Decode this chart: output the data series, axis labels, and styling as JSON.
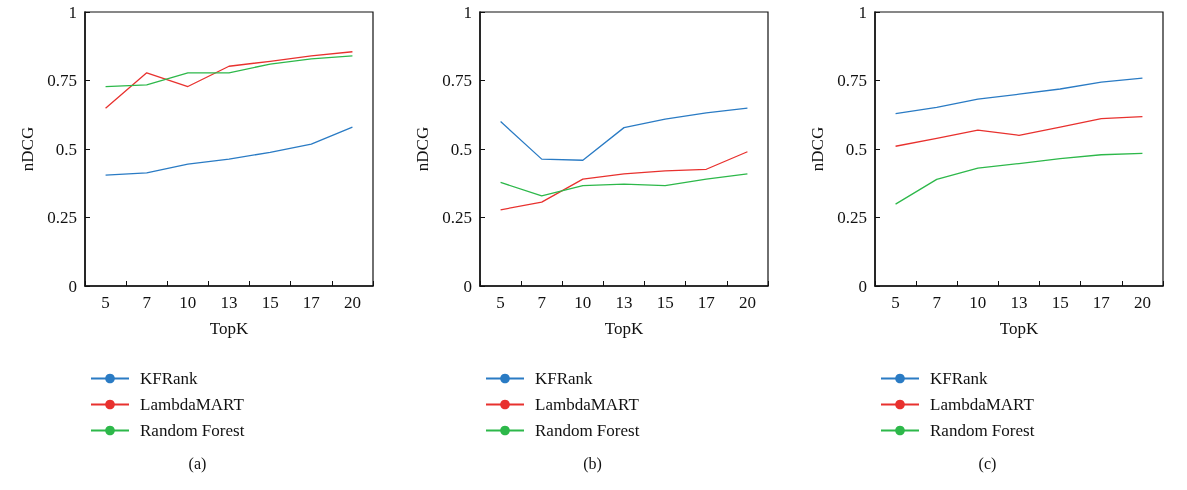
{
  "chart_data": [
    {
      "type": "line",
      "xlabel": "TopK",
      "ylabel": "nDCG",
      "categories": [
        "5",
        "7",
        "10",
        "13",
        "15",
        "17",
        "20"
      ],
      "ylim": [
        0,
        1
      ],
      "yticks": [
        0,
        0.25,
        0.5,
        0.75,
        1
      ],
      "grid": false,
      "legend": "bottom",
      "marker": "none",
      "annotations": [
        "(a)"
      ],
      "series": [
        {
          "name": "KFRank",
          "color": "#2a7bc4",
          "values": [
            0.405,
            0.413,
            0.445,
            0.463,
            0.488,
            0.518,
            0.58
          ]
        },
        {
          "name": "LambdaMART",
          "color": "#e8312e",
          "values": [
            0.649,
            0.778,
            0.728,
            0.802,
            0.82,
            0.84,
            0.855
          ]
        },
        {
          "name": "Random Forest",
          "color": "#2db84a",
          "values": [
            0.728,
            0.734,
            0.778,
            0.778,
            0.81,
            0.829,
            0.84
          ]
        }
      ]
    },
    {
      "type": "line",
      "xlabel": "TopK",
      "ylabel": "nDCG",
      "categories": [
        "5",
        "7",
        "10",
        "13",
        "15",
        "17",
        "20"
      ],
      "ylim": [
        0,
        1
      ],
      "yticks": [
        0,
        0.25,
        0.5,
        0.75,
        1
      ],
      "grid": false,
      "legend": "bottom",
      "marker": "none",
      "annotations": [
        "(b)"
      ],
      "series": [
        {
          "name": "KFRank",
          "color": "#2a7bc4",
          "values": [
            0.6,
            0.463,
            0.459,
            0.578,
            0.609,
            0.632,
            0.649
          ]
        },
        {
          "name": "LambdaMART",
          "color": "#e8312e",
          "values": [
            0.278,
            0.306,
            0.39,
            0.409,
            0.42,
            0.426,
            0.49
          ]
        },
        {
          "name": "Random Forest",
          "color": "#2db84a",
          "values": [
            0.378,
            0.329,
            0.366,
            0.372,
            0.366,
            0.39,
            0.409
          ]
        }
      ]
    },
    {
      "type": "line",
      "xlabel": "TopK",
      "ylabel": "nDCG",
      "categories": [
        "5",
        "7",
        "10",
        "13",
        "15",
        "17",
        "20"
      ],
      "ylim": [
        0,
        1
      ],
      "yticks": [
        0,
        0.25,
        0.5,
        0.75,
        1
      ],
      "grid": false,
      "legend": "bottom",
      "marker": "none",
      "annotations": [
        "(c)"
      ],
      "series": [
        {
          "name": "KFRank",
          "color": "#2a7bc4",
          "values": [
            0.629,
            0.652,
            0.682,
            0.7,
            0.719,
            0.744,
            0.759
          ]
        },
        {
          "name": "LambdaMART",
          "color": "#e8312e",
          "values": [
            0.51,
            0.539,
            0.569,
            0.55,
            0.58,
            0.611,
            0.618
          ]
        },
        {
          "name": "Random Forest",
          "color": "#2db84a",
          "values": [
            0.299,
            0.389,
            0.43,
            0.447,
            0.465,
            0.479,
            0.484
          ]
        }
      ]
    }
  ]
}
